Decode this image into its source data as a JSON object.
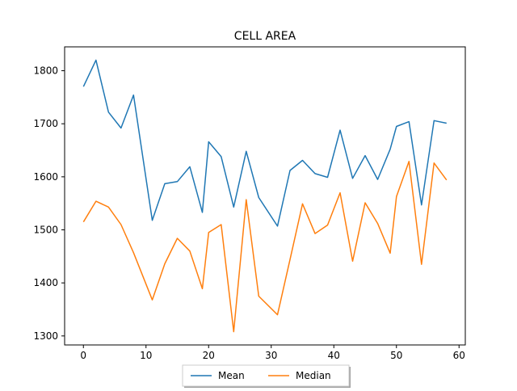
{
  "chart_data": {
    "type": "line",
    "title": "CELL AREA",
    "xlabel": "",
    "ylabel": "",
    "xlim": [
      -3,
      61
    ],
    "ylim": [
      1283,
      1845
    ],
    "xticks": [
      0,
      10,
      20,
      30,
      40,
      50,
      60
    ],
    "yticks": [
      1300,
      1400,
      1500,
      1600,
      1700,
      1800
    ],
    "grid": false,
    "legend_position": "bottom-center",
    "series": [
      {
        "name": "Mean",
        "color": "#1f77b4",
        "points": [
          [
            0,
            1770
          ],
          [
            2,
            1820
          ],
          [
            4,
            1722
          ],
          [
            6,
            1692
          ],
          [
            8,
            1754
          ],
          [
            11,
            1518
          ],
          [
            13,
            1587
          ],
          [
            15,
            1591
          ],
          [
            17,
            1619
          ],
          [
            19,
            1533
          ],
          [
            20,
            1666
          ],
          [
            22,
            1638
          ],
          [
            24,
            1543
          ],
          [
            26,
            1648
          ],
          [
            28,
            1561
          ],
          [
            31,
            1507
          ],
          [
            33,
            1612
          ],
          [
            35,
            1631
          ],
          [
            37,
            1606
          ],
          [
            39,
            1599
          ],
          [
            41,
            1688
          ],
          [
            43,
            1597
          ],
          [
            45,
            1640
          ],
          [
            47,
            1595
          ],
          [
            49,
            1652
          ],
          [
            50,
            1695
          ],
          [
            52,
            1704
          ],
          [
            54,
            1547
          ],
          [
            56,
            1706
          ],
          [
            58,
            1701
          ]
        ]
      },
      {
        "name": "Median",
        "color": "#ff7f0e",
        "points": [
          [
            0,
            1515
          ],
          [
            2,
            1554
          ],
          [
            4,
            1543
          ],
          [
            6,
            1510
          ],
          [
            8,
            1457
          ],
          [
            11,
            1368
          ],
          [
            13,
            1436
          ],
          [
            15,
            1484
          ],
          [
            17,
            1460
          ],
          [
            19,
            1389
          ],
          [
            20,
            1495
          ],
          [
            22,
            1510
          ],
          [
            24,
            1308
          ],
          [
            26,
            1557
          ],
          [
            28,
            1375
          ],
          [
            31,
            1340
          ],
          [
            33,
            1444
          ],
          [
            35,
            1549
          ],
          [
            37,
            1493
          ],
          [
            39,
            1509
          ],
          [
            41,
            1570
          ],
          [
            43,
            1441
          ],
          [
            45,
            1551
          ],
          [
            47,
            1512
          ],
          [
            49,
            1456
          ],
          [
            50,
            1563
          ],
          [
            52,
            1629
          ],
          [
            54,
            1435
          ],
          [
            56,
            1626
          ],
          [
            58,
            1594
          ]
        ]
      }
    ]
  }
}
